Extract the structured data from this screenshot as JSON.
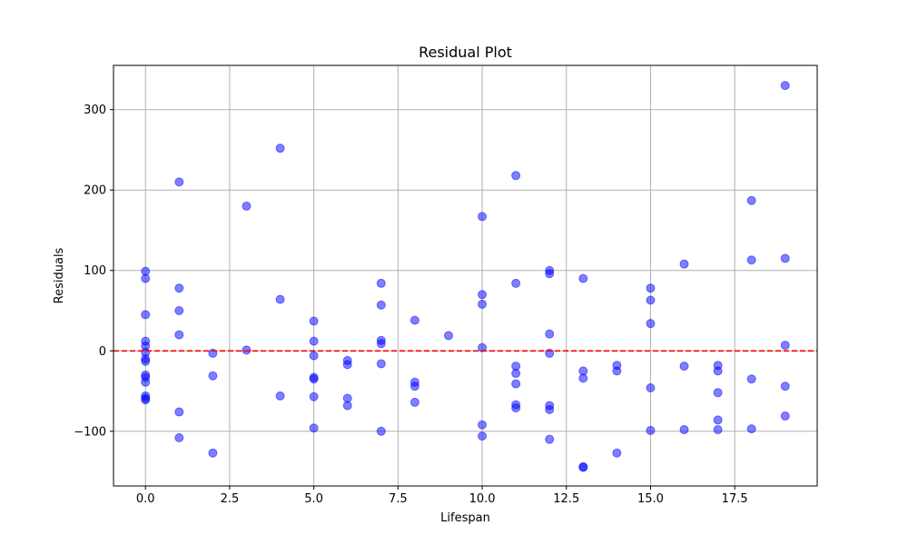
{
  "chart_data": {
    "type": "scatter",
    "title": "Residual Plot",
    "xlabel": "Lifespan",
    "ylabel": "Residuals",
    "xlim": [
      -0.95,
      19.95
    ],
    "ylim": [
      -168,
      355
    ],
    "xticks": [
      0.0,
      2.5,
      5.0,
      7.5,
      10.0,
      12.5,
      15.0,
      17.5
    ],
    "xtick_labels": [
      "0.0",
      "2.5",
      "5.0",
      "7.5",
      "10.0",
      "12.5",
      "15.0",
      "17.5"
    ],
    "yticks": [
      -100,
      0,
      100,
      200,
      300
    ],
    "ytick_labels": [
      "−100",
      "0",
      "100",
      "200",
      "300"
    ],
    "grid": true,
    "marker_color": "#0000ff",
    "marker_alpha": 0.5,
    "reference_line": {
      "y": 0,
      "color": "#ff0000",
      "style": "dashed"
    },
    "points": [
      [
        0,
        99
      ],
      [
        0,
        90
      ],
      [
        0,
        45
      ],
      [
        0,
        12
      ],
      [
        0,
        6
      ],
      [
        0,
        -2
      ],
      [
        0,
        -10
      ],
      [
        0,
        -13
      ],
      [
        0,
        -30
      ],
      [
        0,
        -33
      ],
      [
        0,
        -39
      ],
      [
        0,
        -56
      ],
      [
        0,
        -59
      ],
      [
        0,
        -61
      ],
      [
        1,
        210
      ],
      [
        1,
        78
      ],
      [
        1,
        50
      ],
      [
        1,
        20
      ],
      [
        1,
        -76
      ],
      [
        1,
        -108
      ],
      [
        2,
        -3
      ],
      [
        2,
        -31
      ],
      [
        2,
        -127
      ],
      [
        3,
        180
      ],
      [
        3,
        1
      ],
      [
        4,
        252
      ],
      [
        4,
        64
      ],
      [
        4,
        -56
      ],
      [
        5,
        37
      ],
      [
        5,
        12
      ],
      [
        5,
        -6
      ],
      [
        5,
        -33
      ],
      [
        5,
        -35
      ],
      [
        5,
        -57
      ],
      [
        5,
        -96
      ],
      [
        6,
        -12
      ],
      [
        6,
        -17
      ],
      [
        6,
        -59
      ],
      [
        6,
        -68
      ],
      [
        7,
        84
      ],
      [
        7,
        57
      ],
      [
        7,
        13
      ],
      [
        7,
        9
      ],
      [
        7,
        -16
      ],
      [
        7,
        -100
      ],
      [
        8,
        38
      ],
      [
        8,
        -39
      ],
      [
        8,
        -44
      ],
      [
        8,
        -64
      ],
      [
        9,
        19
      ],
      [
        10,
        167
      ],
      [
        10,
        70
      ],
      [
        10,
        58
      ],
      [
        10,
        4
      ],
      [
        10,
        -92
      ],
      [
        10,
        -106
      ],
      [
        11,
        218
      ],
      [
        11,
        84
      ],
      [
        11,
        -19
      ],
      [
        11,
        -28
      ],
      [
        11,
        -41
      ],
      [
        11,
        -67
      ],
      [
        11,
        -71
      ],
      [
        12,
        100
      ],
      [
        12,
        96
      ],
      [
        12,
        21
      ],
      [
        12,
        -3
      ],
      [
        12,
        -68
      ],
      [
        12,
        -73
      ],
      [
        12,
        -110
      ],
      [
        13,
        90
      ],
      [
        13,
        -25
      ],
      [
        13,
        -34
      ],
      [
        13,
        -144
      ],
      [
        13,
        -145
      ],
      [
        14,
        -18
      ],
      [
        14,
        -25
      ],
      [
        14,
        -127
      ],
      [
        15,
        78
      ],
      [
        15,
        63
      ],
      [
        15,
        34
      ],
      [
        15,
        -46
      ],
      [
        15,
        -99
      ],
      [
        16,
        108
      ],
      [
        16,
        -19
      ],
      [
        16,
        -98
      ],
      [
        17,
        -18
      ],
      [
        17,
        -25
      ],
      [
        17,
        -52
      ],
      [
        17,
        -86
      ],
      [
        17,
        -98
      ],
      [
        18,
        187
      ],
      [
        18,
        113
      ],
      [
        18,
        -35
      ],
      [
        18,
        -97
      ],
      [
        19,
        330
      ],
      [
        19,
        115
      ],
      [
        19,
        7
      ],
      [
        19,
        -44
      ],
      [
        19,
        -81
      ]
    ]
  }
}
